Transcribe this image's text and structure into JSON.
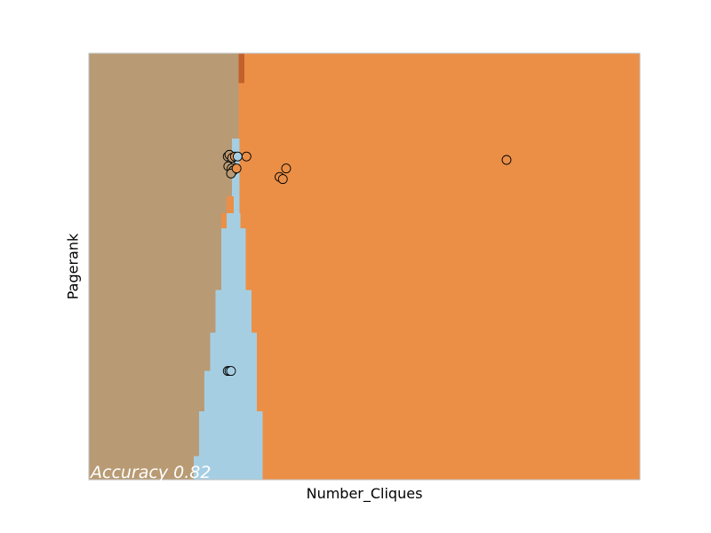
{
  "chart_data": {
    "type": "scatter",
    "title": "",
    "xlabel": "Number_Cliques",
    "ylabel": "Pagerank",
    "show_ticks": false,
    "grid": false,
    "annotation": "Accuracy 0.82",
    "xlim": [
      0,
      100
    ],
    "ylim": [
      0,
      100
    ],
    "class_colors": {
      "tan": "#b89b74",
      "blue": "#a6cee3",
      "orange": "#eb8f47",
      "dark_orange": "#c4602a"
    },
    "decision_regions": [
      {
        "class": "blue",
        "x0": 26.0,
        "x1": 27.3,
        "y0": 66.5,
        "y1": 80.0
      },
      {
        "class": "blue",
        "x0": 25.0,
        "x1": 27.5,
        "y0": 59.0,
        "y1": 62.5
      },
      {
        "class": "blue",
        "x0": 24.0,
        "x1": 28.5,
        "y0": 44.5,
        "y1": 59.0
      },
      {
        "class": "blue",
        "x0": 23.0,
        "x1": 29.5,
        "y0": 34.5,
        "y1": 44.5
      },
      {
        "class": "blue",
        "x0": 22.0,
        "x1": 30.5,
        "y0": 25.5,
        "y1": 34.5
      },
      {
        "class": "blue",
        "x0": 21.0,
        "x1": 30.5,
        "y0": 16.0,
        "y1": 25.5
      },
      {
        "class": "blue",
        "x0": 20.0,
        "x1": 31.5,
        "y0": 5.5,
        "y1": 16.0
      },
      {
        "class": "blue",
        "x0": 19.0,
        "x1": 31.5,
        "y0": 0.0,
        "y1": 5.5
      },
      {
        "class": "blue",
        "x0": 26.3,
        "x1": 27.3,
        "y0": 62.5,
        "y1": 66.5
      },
      {
        "class": "dark_orange",
        "x0": 27.2,
        "x1": 28.2,
        "y0": 93.0,
        "y1": 100.0
      }
    ],
    "boundaries": {
      "tan_right_edge": [
        {
          "y0": 0.0,
          "y1": 5.5,
          "x": 19.0
        },
        {
          "y0": 5.5,
          "y1": 15.0,
          "x": 20.0
        },
        {
          "y0": 15.0,
          "y1": 25.5,
          "x": 21.0
        },
        {
          "y0": 25.5,
          "y1": 34.5,
          "x": 22.0
        },
        {
          "y0": 34.5,
          "y1": 44.5,
          "x": 23.0
        },
        {
          "y0": 44.5,
          "y1": 62.5,
          "x": 24.0
        },
        {
          "y0": 62.5,
          "y1": 66.5,
          "x": 25.0
        },
        {
          "y0": 66.5,
          "y1": 80.0,
          "x": 26.0
        },
        {
          "y0": 80.0,
          "y1": 100.0,
          "x": 27.2
        }
      ],
      "orange_left_edge": [
        {
          "y0": 0.0,
          "y1": 12.0,
          "x": 31.5
        },
        {
          "y0": 12.0,
          "y1": 28.0,
          "x": 30.5
        },
        {
          "y0": 28.0,
          "y1": 44.5,
          "x": 29.5
        },
        {
          "y0": 44.5,
          "y1": 59.0,
          "x": 28.5
        },
        {
          "y0": 59.0,
          "y1": 72.0,
          "x": 27.5
        },
        {
          "y0": 72.0,
          "y1": 100.0,
          "x": 27.3
        }
      ]
    },
    "points": [
      {
        "x": 25.2,
        "y": 75.8,
        "class": "tan"
      },
      {
        "x": 25.5,
        "y": 76.2,
        "class": "tan"
      },
      {
        "x": 25.7,
        "y": 74.0,
        "class": "tan"
      },
      {
        "x": 25.3,
        "y": 73.5,
        "class": "tan"
      },
      {
        "x": 25.9,
        "y": 73.0,
        "class": "tan"
      },
      {
        "x": 26.2,
        "y": 72.5,
        "class": "tan"
      },
      {
        "x": 25.8,
        "y": 71.8,
        "class": "tan"
      },
      {
        "x": 26.0,
        "y": 75.5,
        "class": "tan"
      },
      {
        "x": 26.5,
        "y": 75.8,
        "class": "orange"
      },
      {
        "x": 27.0,
        "y": 75.8,
        "class": "blue"
      },
      {
        "x": 28.6,
        "y": 75.8,
        "class": "orange"
      },
      {
        "x": 26.8,
        "y": 73.0,
        "class": "orange"
      },
      {
        "x": 35.8,
        "y": 73.0,
        "class": "orange"
      },
      {
        "x": 34.6,
        "y": 71.0,
        "class": "orange"
      },
      {
        "x": 35.2,
        "y": 70.5,
        "class": "orange"
      },
      {
        "x": 75.8,
        "y": 75.0,
        "class": "orange"
      },
      {
        "x": 25.2,
        "y": 25.5,
        "class": "blue"
      },
      {
        "x": 25.5,
        "y": 25.5,
        "class": "blue"
      },
      {
        "x": 25.8,
        "y": 25.5,
        "class": "blue"
      }
    ]
  }
}
